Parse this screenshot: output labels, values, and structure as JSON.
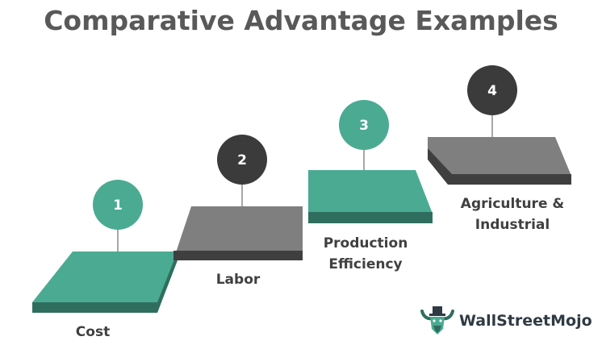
{
  "title": "Comparative Advantage Examples",
  "steps": [
    {
      "number": "1",
      "label_lines": [
        "Cost"
      ],
      "color": "#4aab92"
    },
    {
      "number": "2",
      "label_lines": [
        "Labor"
      ],
      "color": "#7f7f7f"
    },
    {
      "number": "3",
      "label_lines": [
        "Production",
        "Efficiency"
      ],
      "color": "#4aab92"
    },
    {
      "number": "4",
      "label_lines": [
        "Agriculture &",
        "Industrial"
      ],
      "color": "#7f7f7f"
    }
  ],
  "colors": {
    "teal": "#4aab92",
    "teal_dark": "#2f6e5e",
    "gray": "#7f7f7f",
    "gray_dark": "#3f3f3f",
    "circle_dark": "#3b3b3b",
    "title": "#595959"
  },
  "brand": {
    "name": "WallStreetMojo",
    "icon": "bull-mascot-icon"
  }
}
